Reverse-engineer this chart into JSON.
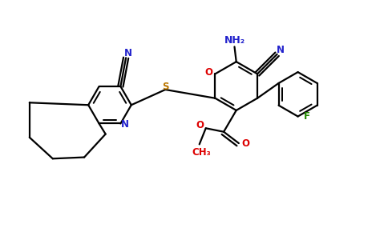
{
  "bg_color": "#ffffff",
  "atom_colors": {
    "N": "#2222cc",
    "O": "#dd0000",
    "S": "#bb7700",
    "F": "#228800",
    "C": "#000000"
  },
  "bond_color": "#000000",
  "bond_lw": 1.6,
  "figsize": [
    4.84,
    3.0
  ],
  "dpi": 100,
  "xlim": [
    -5.2,
    5.6
  ],
  "ylim": [
    -3.0,
    3.2
  ],
  "fs": 8.5
}
